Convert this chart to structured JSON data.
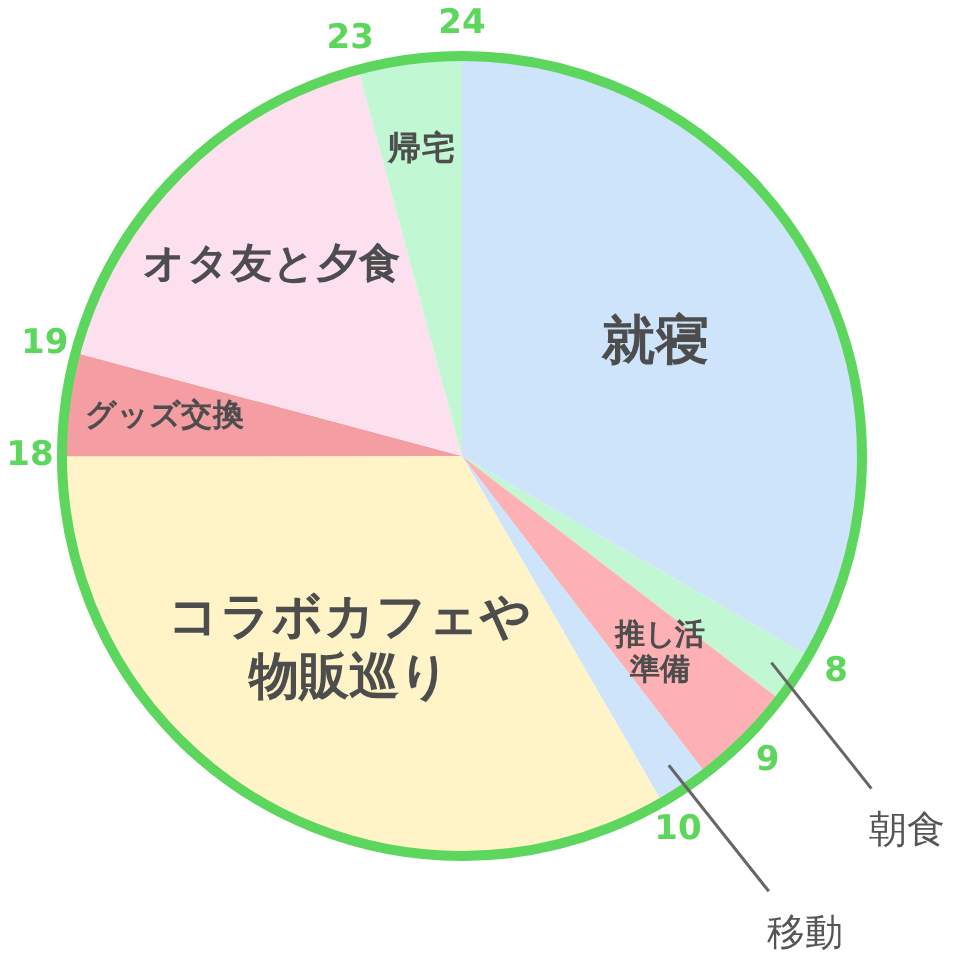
{
  "chart_data": {
    "type": "pie",
    "categories": [
      "就寝",
      "朝食",
      "推し活準備",
      "移動",
      "コラボカフェや物販巡り",
      "グッズ交換",
      "オタ友と夕食",
      "帰宅"
    ],
    "values": [
      33.33,
      2.08,
      4.17,
      2.08,
      33.33,
      4.17,
      16.67,
      4.17
    ],
    "colors": [
      "#cde4fb",
      "#c2f7d3",
      "#fdb1b4",
      "#cde4fb",
      "#fff4c7",
      "#f49ea3",
      "#fde0ee",
      "#c2f7d3"
    ],
    "annotations": [
      "24",
      "8",
      "9",
      "10",
      "18",
      "19",
      "23"
    ]
  }
}
